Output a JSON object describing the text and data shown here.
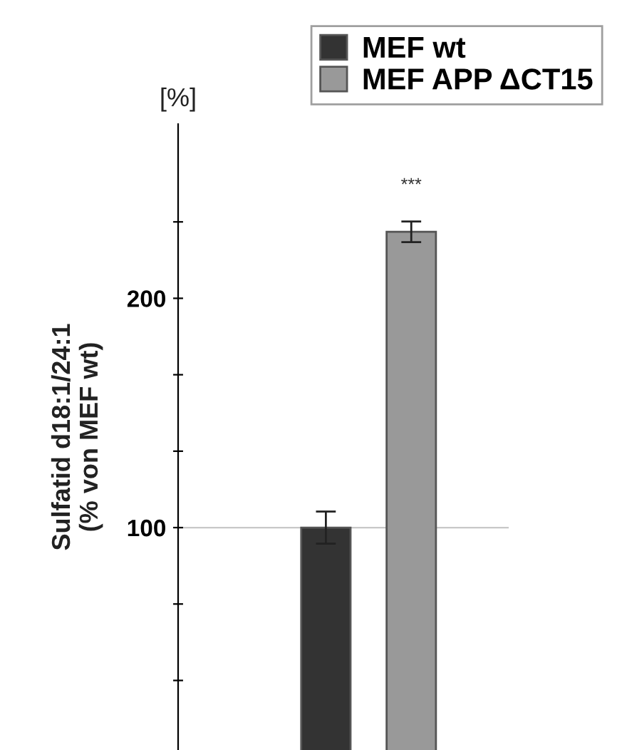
{
  "chart_data": {
    "type": "bar",
    "ylabel": "Sulfatid d18:1/24:1\n(% von MEF wt)",
    "categories": [
      null
    ],
    "series": [
      {
        "name": "MEF wt",
        "color": "#333333",
        "values": [
          100
        ],
        "errors": [
          7
        ]
      },
      {
        "name": "MEF APP ΔCT15",
        "color": "#999999",
        "values": [
          229
        ],
        "errors": [
          4.5
        ]
      }
    ],
    "ylim": [
      3,
      276
    ],
    "yticks": [
      {
        "value": 33.33,
        "label": null
      },
      {
        "value": 66.67,
        "label": null
      },
      100,
      {
        "value": 133.33,
        "label": null
      },
      {
        "value": 166.67,
        "label": null
      },
      200,
      {
        "value": 233.33,
        "label": null
      }
    ],
    "ref_lines": [
      {
        "axis": "y",
        "value": 100,
        "color": "#c8c8c8"
      }
    ],
    "annotations": [
      "[%]",
      "***"
    ],
    "legend": "top right",
    "grid": false
  }
}
